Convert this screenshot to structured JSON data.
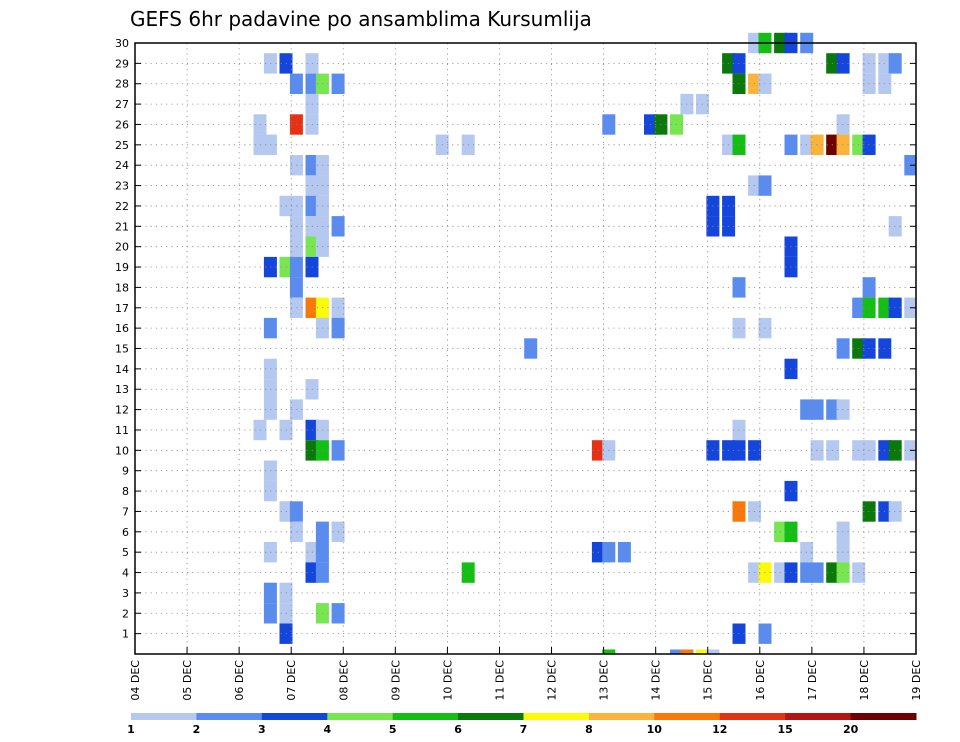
{
  "chart_data": {
    "type": "heatmap",
    "title": "GEFS 6hr padavine po ansamblima Kursumlija",
    "xlabel": "",
    "ylabel": "",
    "x_tick_labels": [
      "04 DEC",
      "05 DEC",
      "06 DEC",
      "07 DEC",
      "08 DEC",
      "09 DEC",
      "10 DEC",
      "11 DEC",
      "12 DEC",
      "13 DEC",
      "14 DEC",
      "15 DEC",
      "16 DEC",
      "17 DEC",
      "18 DEC",
      "19 DEC"
    ],
    "y_tick_labels": [
      "1",
      "2",
      "3",
      "4",
      "5",
      "6",
      "7",
      "8",
      "9",
      "10",
      "11",
      "12",
      "13",
      "14",
      "15",
      "16",
      "17",
      "18",
      "19",
      "20",
      "21",
      "22",
      "23",
      "24",
      "25",
      "26",
      "27",
      "28",
      "29",
      "30"
    ],
    "x_range_days": [
      0,
      15
    ],
    "y_range_members": [
      0,
      30
    ],
    "grid": true,
    "legend_placement": "bottom",
    "colorbar_levels": [
      "1",
      "2",
      "3",
      "4",
      "5",
      "6",
      "7",
      "8",
      "10",
      "12",
      "15",
      "20"
    ],
    "colorbar_colors": [
      "#b4c8f0",
      "#5a8cf0",
      "#1446dc",
      "#78e650",
      "#14be14",
      "#0a780a",
      "#fafa0a",
      "#fab43c",
      "#fa780a",
      "#e63214",
      "#b41414",
      "#6e0000"
    ],
    "cells": [
      {
        "m": 30,
        "d": 11.9,
        "c": 0
      },
      {
        "m": 30,
        "d": 12.1,
        "c": 4
      },
      {
        "m": 30,
        "d": 12.4,
        "c": 5
      },
      {
        "m": 30,
        "d": 12.6,
        "c": 2
      },
      {
        "m": 30,
        "d": 12.9,
        "c": 1
      },
      {
        "m": 29,
        "d": 2.6,
        "c": 0
      },
      {
        "m": 29,
        "d": 2.9,
        "c": 2
      },
      {
        "m": 29,
        "d": 3.4,
        "c": 0
      },
      {
        "m": 29,
        "d": 11.4,
        "c": 5
      },
      {
        "m": 29,
        "d": 11.6,
        "c": 2
      },
      {
        "m": 29,
        "d": 13.4,
        "c": 5
      },
      {
        "m": 29,
        "d": 13.6,
        "c": 2
      },
      {
        "m": 29,
        "d": 14.1,
        "c": 0
      },
      {
        "m": 29,
        "d": 14.4,
        "c": 0
      },
      {
        "m": 29,
        "d": 14.6,
        "c": 1
      },
      {
        "m": 28,
        "d": 3.1,
        "c": 1
      },
      {
        "m": 28,
        "d": 3.4,
        "c": 1
      },
      {
        "m": 28,
        "d": 3.6,
        "c": 3
      },
      {
        "m": 28,
        "d": 3.9,
        "c": 1
      },
      {
        "m": 28,
        "d": 11.6,
        "c": 5
      },
      {
        "m": 28,
        "d": 11.9,
        "c": 7
      },
      {
        "m": 28,
        "d": 12.1,
        "c": 0
      },
      {
        "m": 28,
        "d": 14.1,
        "c": 0
      },
      {
        "m": 28,
        "d": 14.4,
        "c": 0
      },
      {
        "m": 27,
        "d": 3.4,
        "c": 0
      },
      {
        "m": 27,
        "d": 10.6,
        "c": 0
      },
      {
        "m": 27,
        "d": 10.9,
        "c": 0
      },
      {
        "m": 26,
        "d": 2.4,
        "c": 0
      },
      {
        "m": 26,
        "d": 3.1,
        "c": 9
      },
      {
        "m": 26,
        "d": 3.4,
        "c": 0
      },
      {
        "m": 26,
        "d": 9.1,
        "c": 1
      },
      {
        "m": 26,
        "d": 9.9,
        "c": 2
      },
      {
        "m": 26,
        "d": 10.1,
        "c": 5
      },
      {
        "m": 26,
        "d": 10.4,
        "c": 3
      },
      {
        "m": 26,
        "d": 13.6,
        "c": 0
      },
      {
        "m": 25,
        "d": 2.4,
        "c": 0
      },
      {
        "m": 25,
        "d": 2.6,
        "c": 0
      },
      {
        "m": 25,
        "d": 5.9,
        "c": 0
      },
      {
        "m": 25,
        "d": 6.4,
        "c": 0
      },
      {
        "m": 25,
        "d": 11.4,
        "c": 0
      },
      {
        "m": 25,
        "d": 11.6,
        "c": 4
      },
      {
        "m": 25,
        "d": 12.6,
        "c": 1
      },
      {
        "m": 25,
        "d": 12.9,
        "c": 0
      },
      {
        "m": 25,
        "d": 13.1,
        "c": 7
      },
      {
        "m": 25,
        "d": 13.4,
        "c": 11
      },
      {
        "m": 25,
        "d": 13.6,
        "c": 7
      },
      {
        "m": 25,
        "d": 13.9,
        "c": 3
      },
      {
        "m": 25,
        "d": 14.1,
        "c": 2
      },
      {
        "m": 24,
        "d": 3.1,
        "c": 0
      },
      {
        "m": 24,
        "d": 3.4,
        "c": 1
      },
      {
        "m": 24,
        "d": 3.6,
        "c": 0
      },
      {
        "m": 24,
        "d": 14.9,
        "c": 1
      },
      {
        "m": 23,
        "d": 3.4,
        "c": 0
      },
      {
        "m": 23,
        "d": 3.6,
        "c": 0
      },
      {
        "m": 23,
        "d": 11.9,
        "c": 0
      },
      {
        "m": 23,
        "d": 12.1,
        "c": 1
      },
      {
        "m": 22,
        "d": 2.9,
        "c": 0
      },
      {
        "m": 22,
        "d": 3.1,
        "c": 0
      },
      {
        "m": 22,
        "d": 3.4,
        "c": 1
      },
      {
        "m": 22,
        "d": 3.6,
        "c": 0
      },
      {
        "m": 22,
        "d": 11.1,
        "c": 2
      },
      {
        "m": 22,
        "d": 11.4,
        "c": 2
      },
      {
        "m": 21,
        "d": 3.1,
        "c": 0
      },
      {
        "m": 21,
        "d": 3.4,
        "c": 0
      },
      {
        "m": 21,
        "d": 3.6,
        "c": 0
      },
      {
        "m": 21,
        "d": 3.9,
        "c": 1
      },
      {
        "m": 21,
        "d": 11.1,
        "c": 2
      },
      {
        "m": 21,
        "d": 11.4,
        "c": 2
      },
      {
        "m": 21,
        "d": 14.6,
        "c": 0
      },
      {
        "m": 20,
        "d": 3.1,
        "c": 0
      },
      {
        "m": 20,
        "d": 3.4,
        "c": 3
      },
      {
        "m": 20,
        "d": 3.6,
        "c": 0
      },
      {
        "m": 20,
        "d": 12.6,
        "c": 2
      },
      {
        "m": 19,
        "d": 2.6,
        "c": 2
      },
      {
        "m": 19,
        "d": 2.9,
        "c": 3
      },
      {
        "m": 19,
        "d": 3.1,
        "c": 1
      },
      {
        "m": 19,
        "d": 3.4,
        "c": 2
      },
      {
        "m": 19,
        "d": 12.6,
        "c": 2
      },
      {
        "m": 18,
        "d": 3.1,
        "c": 1
      },
      {
        "m": 18,
        "d": 11.6,
        "c": 1
      },
      {
        "m": 18,
        "d": 14.1,
        "c": 1
      },
      {
        "m": 17,
        "d": 3.1,
        "c": 0
      },
      {
        "m": 17,
        "d": 3.4,
        "c": 8
      },
      {
        "m": 17,
        "d": 3.6,
        "c": 6
      },
      {
        "m": 17,
        "d": 3.9,
        "c": 0
      },
      {
        "m": 17,
        "d": 13.9,
        "c": 1
      },
      {
        "m": 17,
        "d": 14.1,
        "c": 4
      },
      {
        "m": 17,
        "d": 14.4,
        "c": 4
      },
      {
        "m": 17,
        "d": 14.6,
        "c": 2
      },
      {
        "m": 17,
        "d": 14.9,
        "c": 0
      },
      {
        "m": 16,
        "d": 2.6,
        "c": 1
      },
      {
        "m": 16,
        "d": 3.6,
        "c": 0
      },
      {
        "m": 16,
        "d": 3.9,
        "c": 1
      },
      {
        "m": 16,
        "d": 11.6,
        "c": 0
      },
      {
        "m": 16,
        "d": 12.1,
        "c": 0
      },
      {
        "m": 15,
        "d": 7.6,
        "c": 1
      },
      {
        "m": 15,
        "d": 13.6,
        "c": 1
      },
      {
        "m": 15,
        "d": 13.9,
        "c": 5
      },
      {
        "m": 15,
        "d": 14.1,
        "c": 2
      },
      {
        "m": 15,
        "d": 14.4,
        "c": 2
      },
      {
        "m": 14,
        "d": 2.6,
        "c": 0
      },
      {
        "m": 14,
        "d": 12.6,
        "c": 2
      },
      {
        "m": 13,
        "d": 2.6,
        "c": 0
      },
      {
        "m": 13,
        "d": 3.4,
        "c": 0
      },
      {
        "m": 12,
        "d": 2.6,
        "c": 0
      },
      {
        "m": 12,
        "d": 3.1,
        "c": 0
      },
      {
        "m": 12,
        "d": 12.9,
        "c": 1
      },
      {
        "m": 12,
        "d": 13.1,
        "c": 1
      },
      {
        "m": 12,
        "d": 13.4,
        "c": 1
      },
      {
        "m": 12,
        "d": 13.6,
        "c": 0
      },
      {
        "m": 11,
        "d": 2.4,
        "c": 0
      },
      {
        "m": 11,
        "d": 2.9,
        "c": 0
      },
      {
        "m": 11,
        "d": 3.4,
        "c": 2
      },
      {
        "m": 11,
        "d": 3.6,
        "c": 0
      },
      {
        "m": 11,
        "d": 11.6,
        "c": 0
      },
      {
        "m": 10,
        "d": 3.4,
        "c": 5
      },
      {
        "m": 10,
        "d": 3.6,
        "c": 4
      },
      {
        "m": 10,
        "d": 3.9,
        "c": 1
      },
      {
        "m": 10,
        "d": 8.9,
        "c": 9
      },
      {
        "m": 10,
        "d": 9.1,
        "c": 0
      },
      {
        "m": 10,
        "d": 11.1,
        "c": 2
      },
      {
        "m": 10,
        "d": 11.4,
        "c": 2
      },
      {
        "m": 10,
        "d": 11.6,
        "c": 2
      },
      {
        "m": 10,
        "d": 11.9,
        "c": 2
      },
      {
        "m": 10,
        "d": 13.1,
        "c": 0
      },
      {
        "m": 10,
        "d": 13.4,
        "c": 0
      },
      {
        "m": 10,
        "d": 13.9,
        "c": 0
      },
      {
        "m": 10,
        "d": 14.1,
        "c": 0
      },
      {
        "m": 10,
        "d": 14.4,
        "c": 2
      },
      {
        "m": 10,
        "d": 14.6,
        "c": 5
      },
      {
        "m": 10,
        "d": 14.9,
        "c": 0
      },
      {
        "m": 9,
        "d": 2.6,
        "c": 0
      },
      {
        "m": 8,
        "d": 2.6,
        "c": 0
      },
      {
        "m": 8,
        "d": 12.6,
        "c": 2
      },
      {
        "m": 7,
        "d": 2.9,
        "c": 0
      },
      {
        "m": 7,
        "d": 3.1,
        "c": 1
      },
      {
        "m": 7,
        "d": 11.6,
        "c": 8
      },
      {
        "m": 7,
        "d": 11.9,
        "c": 0
      },
      {
        "m": 7,
        "d": 14.1,
        "c": 5
      },
      {
        "m": 7,
        "d": 14.4,
        "c": 2
      },
      {
        "m": 7,
        "d": 14.6,
        "c": 0
      },
      {
        "m": 6,
        "d": 3.1,
        "c": 0
      },
      {
        "m": 6,
        "d": 3.6,
        "c": 1
      },
      {
        "m": 6,
        "d": 3.9,
        "c": 0
      },
      {
        "m": 6,
        "d": 12.4,
        "c": 3
      },
      {
        "m": 6,
        "d": 12.6,
        "c": 4
      },
      {
        "m": 6,
        "d": 13.6,
        "c": 0
      },
      {
        "m": 5,
        "d": 2.6,
        "c": 0
      },
      {
        "m": 5,
        "d": 3.4,
        "c": 0
      },
      {
        "m": 5,
        "d": 3.6,
        "c": 1
      },
      {
        "m": 5,
        "d": 8.9,
        "c": 2
      },
      {
        "m": 5,
        "d": 9.1,
        "c": 1
      },
      {
        "m": 5,
        "d": 9.4,
        "c": 1
      },
      {
        "m": 5,
        "d": 12.9,
        "c": 0
      },
      {
        "m": 5,
        "d": 13.6,
        "c": 0
      },
      {
        "m": 4,
        "d": 3.4,
        "c": 2
      },
      {
        "m": 4,
        "d": 3.6,
        "c": 1
      },
      {
        "m": 4,
        "d": 6.4,
        "c": 4
      },
      {
        "m": 4,
        "d": 11.9,
        "c": 0
      },
      {
        "m": 4,
        "d": 12.1,
        "c": 6
      },
      {
        "m": 4,
        "d": 12.4,
        "c": 0
      },
      {
        "m": 4,
        "d": 12.6,
        "c": 2
      },
      {
        "m": 4,
        "d": 12.9,
        "c": 1
      },
      {
        "m": 4,
        "d": 13.1,
        "c": 1
      },
      {
        "m": 4,
        "d": 13.4,
        "c": 5
      },
      {
        "m": 4,
        "d": 13.6,
        "c": 3
      },
      {
        "m": 4,
        "d": 13.9,
        "c": 0
      },
      {
        "m": 3,
        "d": 2.6,
        "c": 1
      },
      {
        "m": 3,
        "d": 2.9,
        "c": 0
      },
      {
        "m": 2,
        "d": 2.6,
        "c": 1
      },
      {
        "m": 2,
        "d": 2.9,
        "c": 0
      },
      {
        "m": 2,
        "d": 3.6,
        "c": 3
      },
      {
        "m": 2,
        "d": 3.9,
        "c": 1
      },
      {
        "m": 1,
        "d": 2.9,
        "c": 2
      },
      {
        "m": 1,
        "d": 11.6,
        "c": 2
      },
      {
        "m": 1,
        "d": 12.1,
        "c": 1
      },
      {
        "m": 0,
        "d": 9.1,
        "c": 4
      },
      {
        "m": 0,
        "d": 10.4,
        "c": 1
      },
      {
        "m": 0,
        "d": 10.6,
        "c": 8
      },
      {
        "m": 0,
        "d": 10.9,
        "c": 6
      },
      {
        "m": 0,
        "d": 11.1,
        "c": 0
      }
    ]
  }
}
